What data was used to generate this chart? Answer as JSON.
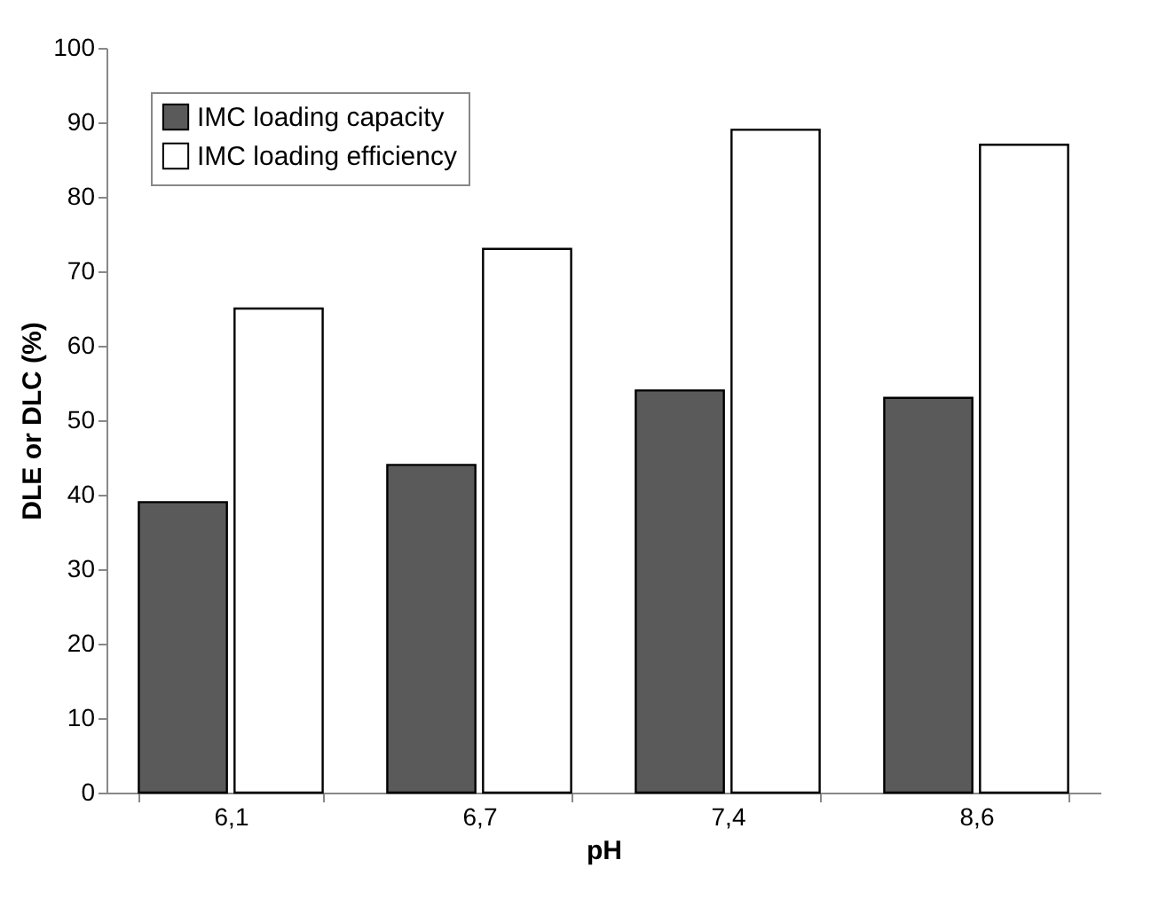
{
  "chart_data": {
    "type": "bar",
    "xlabel": "pH",
    "ylabel": "DLE or DLC (%)",
    "categories": [
      "6,1",
      "6,7",
      "7,4",
      "8,6"
    ],
    "series": [
      {
        "name": "IMC loading capacity",
        "color": "#5a5a5a",
        "values": [
          39,
          44,
          54,
          53
        ]
      },
      {
        "name": "IMC loading efficiency",
        "color": "#ffffff",
        "values": [
          65,
          73,
          89,
          87
        ]
      }
    ],
    "ylim": [
      0,
      100
    ],
    "yticks": [
      0,
      10,
      20,
      30,
      40,
      50,
      60,
      70,
      80,
      90,
      100
    ],
    "grid": false,
    "legend": "top left"
  }
}
